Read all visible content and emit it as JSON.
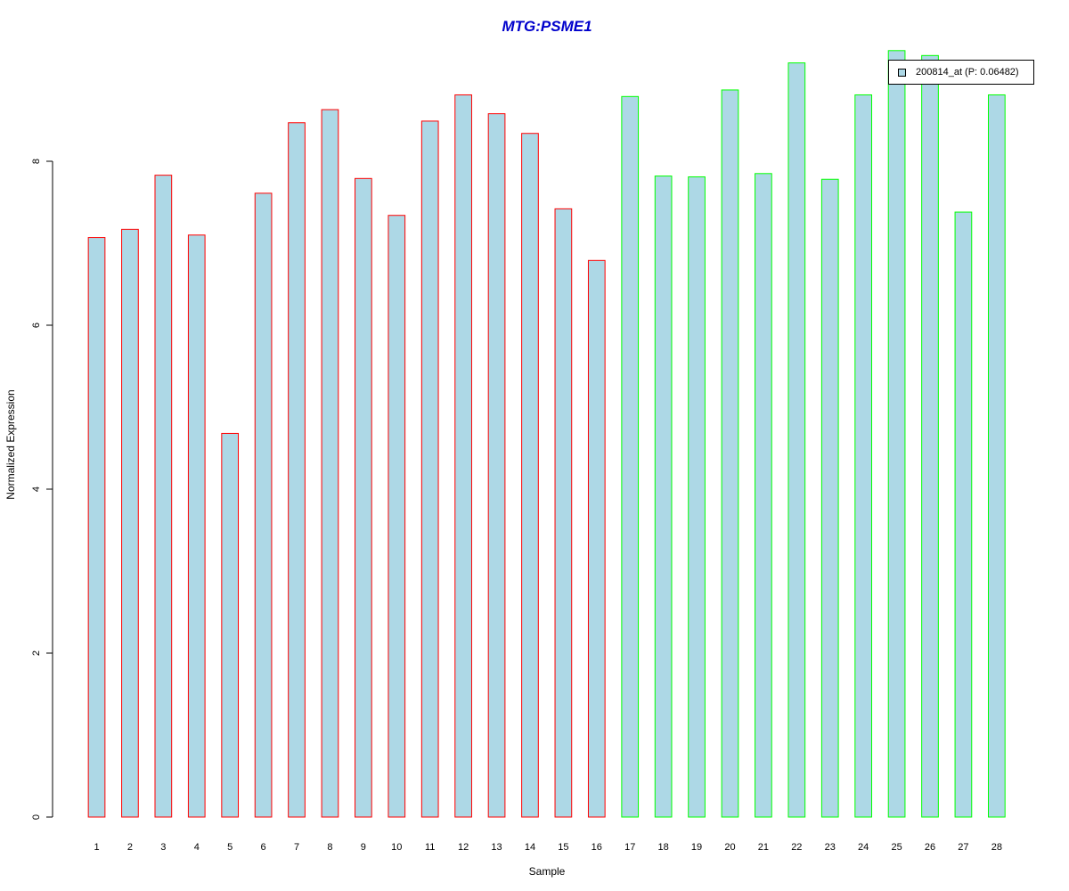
{
  "chart_data": {
    "type": "bar",
    "title": "MTG:PSME1",
    "xlabel": "Sample",
    "ylabel": "Normalized Expression",
    "categories": [
      "1",
      "2",
      "3",
      "4",
      "5",
      "6",
      "7",
      "8",
      "9",
      "10",
      "11",
      "12",
      "13",
      "14",
      "15",
      "16",
      "17",
      "18",
      "19",
      "20",
      "21",
      "22",
      "23",
      "24",
      "25",
      "26",
      "27",
      "28"
    ],
    "series": [
      {
        "name": "200814_at (P: 0.06482)",
        "values": [
          7.07,
          7.17,
          7.83,
          7.1,
          4.68,
          7.61,
          8.47,
          8.63,
          7.79,
          7.34,
          8.49,
          8.81,
          8.58,
          8.34,
          7.42,
          6.79,
          8.79,
          7.82,
          7.81,
          8.87,
          7.85,
          9.2,
          7.78,
          8.81,
          9.35,
          9.29,
          7.38,
          8.81
        ],
        "fill_color": "#add8e6",
        "edge_colors": [
          "#ff0000",
          "#ff0000",
          "#ff0000",
          "#ff0000",
          "#ff0000",
          "#ff0000",
          "#ff0000",
          "#ff0000",
          "#ff0000",
          "#ff0000",
          "#ff0000",
          "#ff0000",
          "#ff0000",
          "#ff0000",
          "#ff0000",
          "#ff0000",
          "#00ff00",
          "#00ff00",
          "#00ff00",
          "#00ff00",
          "#00ff00",
          "#00ff00",
          "#00ff00",
          "#00ff00",
          "#00ff00",
          "#00ff00",
          "#00ff00",
          "#00ff00"
        ]
      }
    ],
    "yticks": [
      0,
      2,
      4,
      6,
      8
    ],
    "ylim": [
      0,
      9.35
    ],
    "legend": {
      "placement": "top-right",
      "entries": [
        "200814_at (P: 0.06482)"
      ]
    },
    "grid": false
  }
}
